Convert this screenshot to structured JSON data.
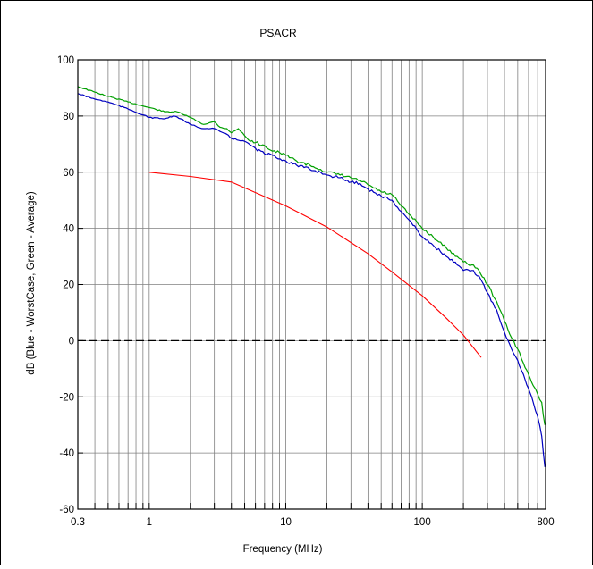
{
  "chart_data": {
    "type": "line",
    "title": "PSACR",
    "xlabel": "Frequency (MHz)",
    "ylabel": "dB (Blue - WorstCase, Green - Average)",
    "xscale": "log",
    "xlim": [
      0.3,
      800
    ],
    "ylim": [
      -60,
      100
    ],
    "x_tick_labels": [
      {
        "value": 0.3,
        "label": "0.3"
      },
      {
        "value": 1,
        "label": "1"
      },
      {
        "value": 10,
        "label": "10"
      },
      {
        "value": 100,
        "label": "100"
      },
      {
        "value": 800,
        "label": "800"
      }
    ],
    "y_ticks": [
      -60,
      -40,
      -20,
      0,
      20,
      40,
      60,
      80,
      100
    ],
    "grid": true,
    "reference_line": {
      "y": 0,
      "style": "dashed",
      "color": "#000000"
    },
    "series": [
      {
        "color": "#00A000",
        "points": [
          [
            0.3,
            90.5
          ],
          [
            0.4,
            88.5
          ],
          [
            0.5,
            87
          ],
          [
            0.7,
            85
          ],
          [
            1,
            83
          ],
          [
            1.3,
            81.5
          ],
          [
            1.6,
            81.5
          ],
          [
            2,
            79.5
          ],
          [
            2.5,
            77
          ],
          [
            3,
            78
          ],
          [
            3.3,
            76
          ],
          [
            3.7,
            75.5
          ],
          [
            4,
            74
          ],
          [
            4.5,
            75.5
          ],
          [
            5,
            73
          ],
          [
            5.5,
            71
          ],
          [
            6,
            70.5
          ],
          [
            7,
            69.5
          ],
          [
            8,
            67.5
          ],
          [
            9,
            67
          ],
          [
            10,
            66
          ],
          [
            12,
            64
          ],
          [
            15,
            62.5
          ],
          [
            18,
            61
          ],
          [
            20,
            60
          ],
          [
            25,
            59
          ],
          [
            30,
            58
          ],
          [
            35,
            57
          ],
          [
            40,
            55.5
          ],
          [
            50,
            53
          ],
          [
            60,
            52
          ],
          [
            70,
            48
          ],
          [
            80,
            45
          ],
          [
            100,
            40
          ],
          [
            120,
            37
          ],
          [
            150,
            33
          ],
          [
            180,
            30
          ],
          [
            200,
            28
          ],
          [
            230,
            27
          ],
          [
            260,
            25
          ],
          [
            300,
            20
          ],
          [
            350,
            14
          ],
          [
            400,
            7
          ],
          [
            450,
            1
          ],
          [
            500,
            -3
          ],
          [
            550,
            -8
          ],
          [
            600,
            -12
          ],
          [
            650,
            -16
          ],
          [
            700,
            -19
          ],
          [
            750,
            -22
          ],
          [
            790,
            -30
          ]
        ]
      },
      {
        "color": "#0000C0",
        "points": [
          [
            0.3,
            88
          ],
          [
            0.4,
            86
          ],
          [
            0.5,
            85
          ],
          [
            0.7,
            82.5
          ],
          [
            1,
            79.5
          ],
          [
            1.3,
            79
          ],
          [
            1.5,
            80
          ],
          [
            1.7,
            79
          ],
          [
            2,
            77
          ],
          [
            2.5,
            75.5
          ],
          [
            3,
            75.5
          ],
          [
            3.3,
            74.5
          ],
          [
            3.7,
            73.5
          ],
          [
            4,
            72
          ],
          [
            5,
            71
          ],
          [
            6,
            68.5
          ],
          [
            7,
            66.5
          ],
          [
            8,
            66
          ],
          [
            10,
            64
          ],
          [
            12,
            62.5
          ],
          [
            15,
            61
          ],
          [
            18,
            60
          ],
          [
            20,
            59
          ],
          [
            25,
            58
          ],
          [
            30,
            56.5
          ],
          [
            35,
            56
          ],
          [
            40,
            54
          ],
          [
            50,
            51.5
          ],
          [
            60,
            50
          ],
          [
            70,
            46
          ],
          [
            80,
            43
          ],
          [
            100,
            37
          ],
          [
            120,
            34
          ],
          [
            150,
            30
          ],
          [
            180,
            27
          ],
          [
            200,
            25
          ],
          [
            230,
            25
          ],
          [
            260,
            23
          ],
          [
            300,
            17
          ],
          [
            350,
            11
          ],
          [
            400,
            3
          ],
          [
            450,
            -3
          ],
          [
            500,
            -7
          ],
          [
            550,
            -12
          ],
          [
            600,
            -17
          ],
          [
            650,
            -22
          ],
          [
            700,
            -27
          ],
          [
            750,
            -34
          ],
          [
            790,
            -45
          ]
        ]
      },
      {
        "color": "#FF0000",
        "points": [
          [
            1,
            60
          ],
          [
            2,
            58.5
          ],
          [
            4,
            56.5
          ],
          [
            10,
            48
          ],
          [
            20,
            40.5
          ],
          [
            40,
            31
          ],
          [
            60,
            24.5
          ],
          [
            100,
            16
          ],
          [
            150,
            8
          ],
          [
            200,
            2
          ],
          [
            270,
            -6
          ]
        ]
      }
    ]
  }
}
